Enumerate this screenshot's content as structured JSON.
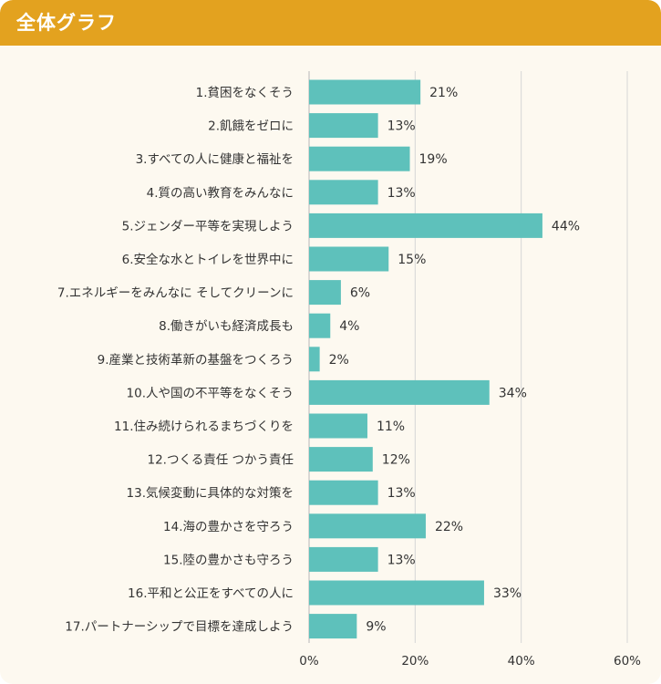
{
  "header": {
    "title": "全体グラフ"
  },
  "colors": {
    "header": "#e3a21f",
    "bar": "#5ec1bb",
    "grid": "#d6d6d6",
    "axis": "#b8b8b8"
  },
  "chart_data": {
    "type": "bar",
    "orientation": "horizontal",
    "title": "全体グラフ",
    "xlim": [
      0,
      60
    ],
    "ticks": [
      0,
      20,
      40,
      60
    ],
    "tick_labels": [
      "0%",
      "20%",
      "40%",
      "60%"
    ],
    "grid": true,
    "categories": [
      "1.貧困をなくそう",
      "2.飢餓をゼロに",
      "3.すべての人に健康と福祉を",
      "4.質の高い教育をみんなに",
      "5.ジェンダー平等を実現しよう",
      "6.安全な水とトイレを世界中に",
      "7.エネルギーをみんなに そしてクリーンに",
      "8.働きがいも経済成長も",
      "9.産業と技術革新の基盤をつくろう",
      "10.人や国の不平等をなくそう",
      "11.住み続けられるまちづくりを",
      "12.つくる責任 つかう責任",
      "13.気候変動に具体的な対策を",
      "14.海の豊かさを守ろう",
      "15.陸の豊かさも守ろう",
      "16.平和と公正をすべての人に",
      "17.パートナーシップで目標を達成しよう"
    ],
    "values": [
      21,
      13,
      19,
      13,
      44,
      15,
      6,
      4,
      2,
      34,
      11,
      12,
      13,
      22,
      13,
      33,
      9
    ],
    "value_labels": [
      "21%",
      "13%",
      "19%",
      "13%",
      "44%",
      "15%",
      "6%",
      "4%",
      "2%",
      "34%",
      "11%",
      "12%",
      "13%",
      "22%",
      "13%",
      "33%",
      "9%"
    ]
  }
}
